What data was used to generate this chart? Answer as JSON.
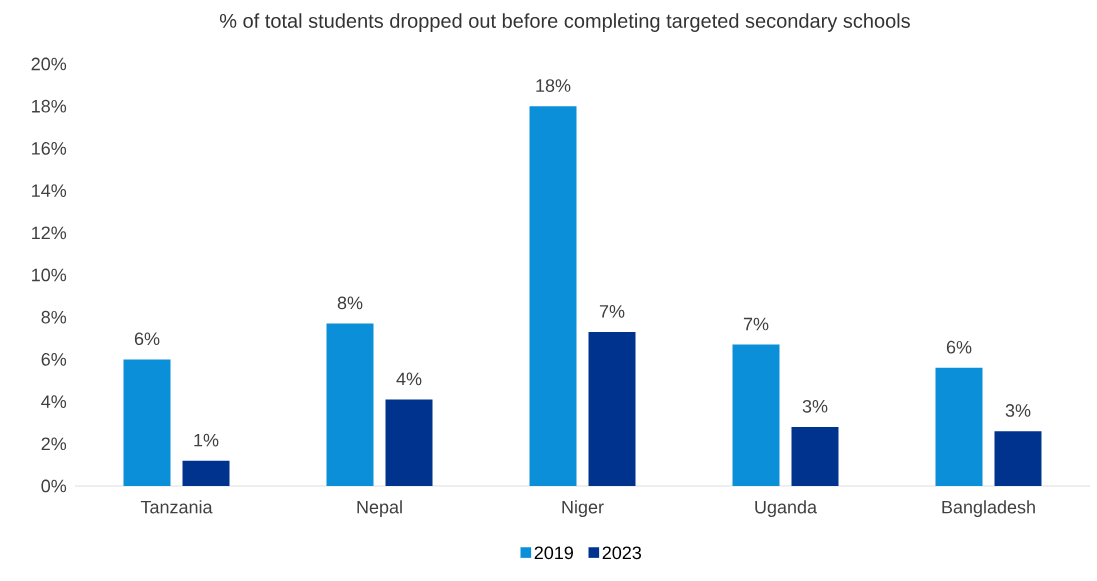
{
  "chart_data": {
    "type": "bar",
    "title": "% of total students dropped out before completing targeted secondary schools",
    "categories": [
      "Tanzania",
      "Nepal",
      "Niger",
      "Uganda",
      "Bangladesh"
    ],
    "series": [
      {
        "name": "2019",
        "color": "#0a8fd8",
        "values": [
          6.0,
          7.7,
          18.0,
          6.7,
          5.6
        ],
        "value_labels": [
          "6%",
          "8%",
          "18%",
          "7%",
          "6%"
        ]
      },
      {
        "name": "2023",
        "color": "#00338d",
        "values": [
          1.2,
          4.1,
          7.3,
          2.8,
          2.6
        ],
        "value_labels": [
          "1%",
          "4%",
          "7%",
          "3%",
          "3%"
        ]
      }
    ],
    "ylim": [
      0,
      20
    ],
    "yticks": [
      {
        "value": 0,
        "label": "0%"
      },
      {
        "value": 2,
        "label": "2%"
      },
      {
        "value": 4,
        "label": "4%"
      },
      {
        "value": 6,
        "label": "6%"
      },
      {
        "value": 8,
        "label": "8%"
      },
      {
        "value": 10,
        "label": "10%"
      },
      {
        "value": 12,
        "label": "12%"
      },
      {
        "value": 14,
        "label": "14%"
      },
      {
        "value": 16,
        "label": "16%"
      },
      {
        "value": 18,
        "label": "18%"
      },
      {
        "value": 20,
        "label": "20%"
      }
    ],
    "legend": "bottom"
  }
}
